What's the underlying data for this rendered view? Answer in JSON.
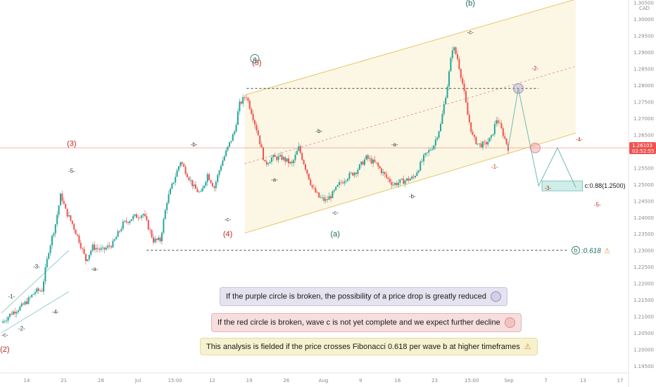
{
  "chart_data": {
    "type": "candlestick",
    "symbol_unit": "CAD",
    "price_axis": {
      "min": 1.195,
      "max": 1.305,
      "ticks": [
        1.305,
        1.3,
        1.295,
        1.29,
        1.285,
        1.28,
        1.275,
        1.27,
        1.265,
        1.26,
        1.255,
        1.25,
        1.245,
        1.24,
        1.235,
        1.23,
        1.225,
        1.22,
        1.215,
        1.21,
        1.205,
        1.2,
        1.195
      ],
      "last_price": "1.26103",
      "countdown": "02:52:55"
    },
    "time_axis": [
      "14",
      "21",
      "28",
      "Jul",
      "15:00",
      "12",
      "19",
      "26",
      "Aug",
      "9",
      "16",
      "23",
      "15:00",
      "Sep",
      "7",
      "13",
      "17"
    ],
    "close_path": [
      [
        0,
        1.208
      ],
      [
        1.5,
        1.211
      ],
      [
        3,
        1.213
      ],
      [
        4,
        1.215
      ],
      [
        5,
        1.2175
      ],
      [
        6,
        1.218
      ],
      [
        7,
        1.23
      ],
      [
        8,
        1.238
      ],
      [
        8.8,
        1.247
      ],
      [
        9.5,
        1.242
      ],
      [
        10.5,
        1.238
      ],
      [
        11.5,
        1.233
      ],
      [
        12.5,
        1.227
      ],
      [
        13.5,
        1.231
      ],
      [
        15,
        1.23
      ],
      [
        16.5,
        1.232
      ],
      [
        18,
        1.238
      ],
      [
        19.5,
        1.24
      ],
      [
        21,
        1.241
      ],
      [
        22.5,
        1.233
      ],
      [
        23.5,
        1.233
      ],
      [
        24.5,
        1.245
      ],
      [
        25.5,
        1.251
      ],
      [
        26.5,
        1.257
      ],
      [
        27.5,
        1.253
      ],
      [
        28.5,
        1.249
      ],
      [
        29.5,
        1.247
      ],
      [
        30.5,
        1.253
      ],
      [
        31.5,
        1.249
      ],
      [
        32.5,
        1.256
      ],
      [
        33.5,
        1.261
      ],
      [
        34.5,
        1.266
      ],
      [
        35.2,
        1.274
      ],
      [
        36.2,
        1.277
      ],
      [
        37,
        1.272
      ],
      [
        38,
        1.265
      ],
      [
        39,
        1.256
      ],
      [
        40,
        1.258
      ],
      [
        41.5,
        1.258
      ],
      [
        43,
        1.256
      ],
      [
        44,
        1.261
      ],
      [
        45,
        1.255
      ],
      [
        46,
        1.249
      ],
      [
        47,
        1.246
      ],
      [
        48,
        1.245
      ],
      [
        49,
        1.247
      ],
      [
        50,
        1.25
      ],
      [
        51,
        1.252
      ],
      [
        52.5,
        1.254
      ],
      [
        54,
        1.258
      ],
      [
        55.5,
        1.256
      ],
      [
        57,
        1.252
      ],
      [
        58,
        1.25
      ],
      [
        59.5,
        1.251
      ],
      [
        61,
        1.252
      ],
      [
        62.5,
        1.258
      ],
      [
        64,
        1.262
      ],
      [
        65,
        1.268
      ],
      [
        66,
        1.28
      ],
      [
        66.8,
        1.292
      ],
      [
        67.5,
        1.288
      ],
      [
        68.3,
        1.28
      ],
      [
        69,
        1.271
      ],
      [
        69.8,
        1.264
      ],
      [
        70.6,
        1.262
      ],
      [
        71.5,
        1.262
      ],
      [
        72.5,
        1.264
      ],
      [
        73.3,
        1.27
      ],
      [
        74.1,
        1.266
      ],
      [
        75,
        1.261
      ]
    ],
    "projection": [
      [
        75,
        1.261
      ],
      [
        76.5,
        1.279
      ],
      [
        79.5,
        1.2495
      ],
      [
        82.3,
        1.261
      ],
      [
        85,
        1.249
      ]
    ],
    "channel": {
      "lower": [
        [
          36,
          1.2352
        ],
        [
          85,
          1.2655
        ]
      ],
      "upper": [
        [
          36,
          1.277
        ],
        [
          85,
          1.306
        ]
      ],
      "middle": [
        [
          36,
          1.2562
        ],
        [
          85,
          1.2857
        ]
      ]
    },
    "small_channel": {
      "lower": [
        [
          0,
          1.205
        ],
        [
          10,
          1.2175
        ]
      ],
      "upper": [
        [
          0,
          1.211
        ],
        [
          10,
          1.23
        ]
      ]
    },
    "levels": [
      {
        "from": 36.3,
        "to": 79.5,
        "price": 1.279,
        "style": "dashed"
      },
      {
        "from": 21.5,
        "to": 84,
        "price": 1.23,
        "style": "dashed"
      }
    ],
    "target_box": {
      "x0": 80,
      "x1": 86,
      "price_top": 1.251,
      "price_bottom": 1.248
    },
    "circles": [
      {
        "x": 76.5,
        "price": 1.279,
        "color": "#9c8fbf"
      },
      {
        "x": 79.0,
        "price": 1.261,
        "color": "#e08a8a"
      }
    ],
    "wave_labels": [
      {
        "text": "-c-",
        "x": 0.5,
        "price": 1.207,
        "color": "#333333",
        "pos": "below"
      },
      {
        "text": "(2)",
        "x": 0.5,
        "price": 1.205,
        "color": "#c0281e",
        "pos": "below2"
      },
      {
        "text": "-1-",
        "x": 1.5,
        "price": 1.214,
        "color": "#333333",
        "pos": "above"
      },
      {
        "text": "-2-",
        "x": 3.0,
        "price": 1.209,
        "color": "#333333",
        "pos": "below"
      },
      {
        "text": "-3-",
        "x": 5.2,
        "price": 1.223,
        "color": "#333333",
        "pos": "above"
      },
      {
        "text": "-4-",
        "x": 8.0,
        "price": 1.214,
        "color": "#333333",
        "pos": "below"
      },
      {
        "text": "(3)",
        "x": 10.4,
        "price": 1.2575,
        "color": "#c0281e",
        "pos": "above2"
      },
      {
        "text": "-5-",
        "x": 10.4,
        "price": 1.252,
        "color": "#333333",
        "pos": "above"
      },
      {
        "text": "-a-",
        "x": 13.8,
        "price": 1.227,
        "color": "#333333",
        "pos": "below"
      },
      {
        "text": "-b-",
        "x": 28.5,
        "price": 1.26,
        "color": "#333333",
        "pos": "above"
      },
      {
        "text": "-c-",
        "x": 33.5,
        "price": 1.242,
        "color": "#333333",
        "pos": "below"
      },
      {
        "text": "(4)",
        "x": 33.5,
        "price": 1.24,
        "color": "#c0281e",
        "pos": "below2"
      },
      {
        "text": "(5)",
        "x": 37.8,
        "price": 1.282,
        "color": "#c0281e",
        "pos": "above2"
      },
      {
        "text": "a",
        "x": 37.5,
        "price": 1.288,
        "color": "#1d6b60",
        "pos": "circle"
      },
      {
        "text": "-a-",
        "x": 40.4,
        "price": 1.254,
        "color": "#333333",
        "pos": "below"
      },
      {
        "text": "-b-",
        "x": 47.0,
        "price": 1.264,
        "color": "#333333",
        "pos": "above"
      },
      {
        "text": "-c-",
        "x": 49.4,
        "price": 1.244,
        "color": "#333333",
        "pos": "below"
      },
      {
        "text": "(a)",
        "x": 49.4,
        "price": 1.24,
        "color": "#1d6b60",
        "pos": "below2"
      },
      {
        "text": "-a-",
        "x": 58.2,
        "price": 1.26,
        "color": "#333333",
        "pos": "above"
      },
      {
        "text": "-b-",
        "x": 60.8,
        "price": 1.249,
        "color": "#333333",
        "pos": "below"
      },
      {
        "text": "-c-",
        "x": 69.4,
        "price": 1.294,
        "color": "#333333",
        "pos": "above"
      },
      {
        "text": "(b)",
        "x": 69.4,
        "price": 1.3,
        "color": "#1d6b60",
        "pos": "above2"
      },
      {
        "text": "-1-",
        "x": 73.0,
        "price": 1.258,
        "color": "#c0281e",
        "pos": "below"
      },
      {
        "text": "-2-",
        "x": 79.0,
        "price": 1.283,
        "color": "#c0281e",
        "pos": "above"
      },
      {
        "text": "-3-",
        "x": 81.8,
        "price": 1.2495,
        "color": "#c0281e",
        "pos": "left"
      },
      {
        "text": "-4-",
        "x": 85.5,
        "price": 1.2615,
        "color": "#c0281e",
        "pos": "above"
      },
      {
        "text": "-5-",
        "x": 88.2,
        "price": 1.2465,
        "color": "#c0281e",
        "pos": "below"
      }
    ],
    "target_label": "c:0.88(1.2500)",
    "fib_label": ":0.618",
    "fib_circle": "b"
  },
  "notes": [
    {
      "text": "If the purple circle is broken, the possibility of a price drop is greatly reduced",
      "bg": "#e6e3f0",
      "border": "#c9c3df",
      "icon": "circle-purple"
    },
    {
      "text": "If the red circle is broken, wave c is not yet complete and we expect further decline",
      "bg": "#f6dede",
      "border": "#e6b5b5",
      "icon": "circle-red"
    },
    {
      "text": "This analysis is fielded if the price crosses Fibonacci 0.618 per wave b at higher timeframes",
      "bg": "#f6f1cf",
      "border": "#e6dca0",
      "icon": "warning-triangle"
    }
  ],
  "colors": {
    "up": "#26a69a",
    "down": "#ef5350",
    "channel": "#e6c56a",
    "channel_fill": "#fbf6df",
    "level": "#333333",
    "last_price": "#ef5350",
    "projection": "#6dbab6",
    "target_box_fill": "#cfeeea"
  }
}
